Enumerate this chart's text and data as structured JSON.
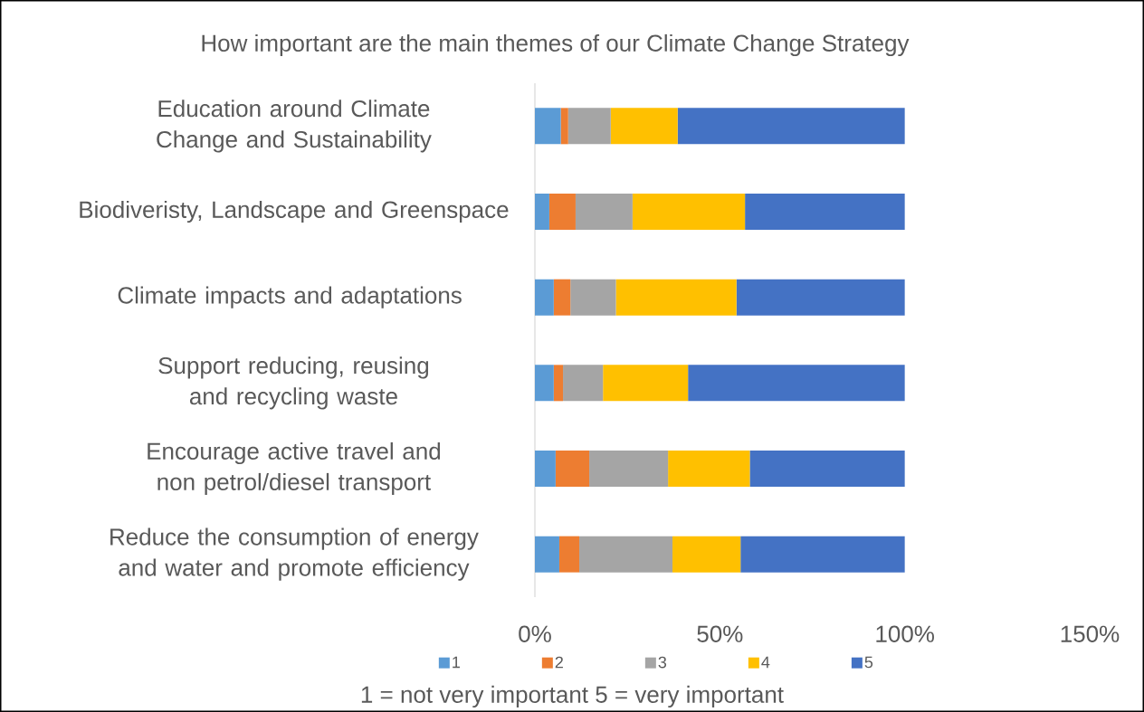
{
  "chart_data": {
    "type": "bar",
    "orientation": "horizontal",
    "stacked": true,
    "title": "How important are the main themes of our Climate Change Strategy",
    "categories": [
      "Education around Climate Change and Sustainability",
      "Biodiveristy, Landscape and Greenspace",
      "Climate impacts and adaptations ",
      "Support reducing, reusing and recycling waste",
      "Encourage active travel and non petrol/diesel transport",
      "Reduce the consumption of energy and water and promote efficiency"
    ],
    "series": [
      {
        "name": "1",
        "color": "#5b9bd5",
        "values": [
          7.0,
          3.9,
          5.1,
          5.1,
          5.6,
          6.6
        ]
      },
      {
        "name": "2",
        "color": "#ed7d31",
        "values": [
          2.0,
          7.1,
          4.5,
          2.5,
          9.1,
          5.4
        ]
      },
      {
        "name": "3",
        "color": "#a5a5a5",
        "values": [
          11.5,
          15.4,
          12.3,
          10.8,
          21.3,
          25.2
        ]
      },
      {
        "name": "4",
        "color": "#ffc000",
        "values": [
          18.1,
          30.4,
          32.6,
          23.0,
          22.1,
          18.4
        ]
      },
      {
        "name": "5",
        "color": "#4472c4",
        "values": [
          61.4,
          43.2,
          45.5,
          58.6,
          41.9,
          44.4
        ]
      }
    ],
    "xlim": [
      0,
      150
    ],
    "xticks": [
      {
        "value": 0,
        "label": "0%"
      },
      {
        "value": 50,
        "label": "50%"
      },
      {
        "value": 100,
        "label": "100%"
      },
      {
        "value": 150,
        "label": "150%"
      }
    ],
    "legend": "bottom",
    "annotations": [
      "1 = not very important  5 = very important"
    ]
  }
}
